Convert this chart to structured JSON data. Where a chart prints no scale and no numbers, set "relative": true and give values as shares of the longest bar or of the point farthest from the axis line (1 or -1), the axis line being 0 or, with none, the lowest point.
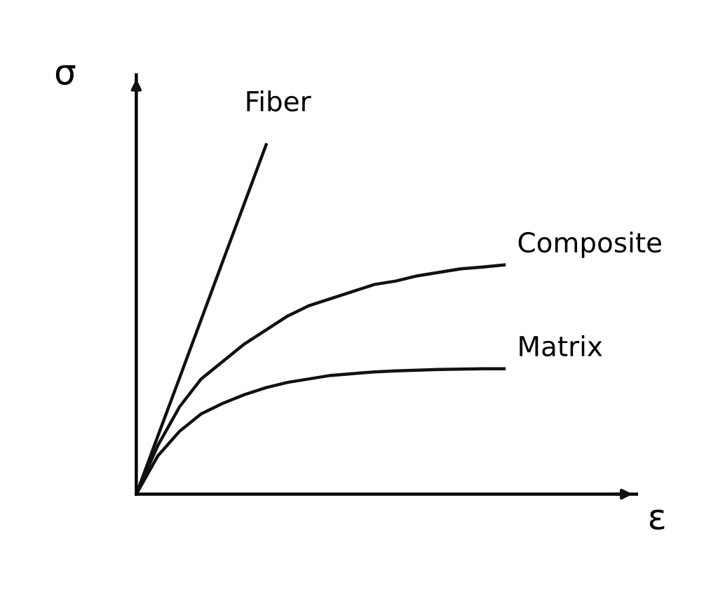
{
  "chart_data": {
    "type": "line",
    "relative": true,
    "xlabel": "ε",
    "ylabel": "σ",
    "marker": "none",
    "line_style": "solid",
    "categories": [
      null,
      null,
      null,
      null,
      null,
      null,
      null,
      null,
      null,
      null,
      null,
      null,
      null,
      null,
      null,
      null,
      null,
      null
    ],
    "series": [
      {
        "name": "Fiber",
        "color": "#111111",
        "values": [
          0,
          0.167,
          0.333,
          0.5,
          0.667,
          0.833,
          1,
          null,
          null,
          null,
          null,
          null,
          null,
          null,
          null,
          null,
          null,
          null
        ]
      },
      {
        "name": "Composite",
        "color": "#111111",
        "values": [
          0,
          0.14,
          0.25,
          0.33,
          0.38,
          0.43,
          0.47,
          0.51,
          0.54,
          0.56,
          0.58,
          0.6,
          0.61,
          0.625,
          0.635,
          0.645,
          0.65,
          0.656
        ]
      },
      {
        "name": "Matrix",
        "color": "#111111",
        "values": [
          0,
          0.11,
          0.18,
          0.23,
          0.26,
          0.285,
          0.305,
          0.32,
          0.33,
          0.34,
          0.345,
          0.35,
          0.353,
          0.355,
          0.357,
          0.358,
          0.359,
          0.359
        ]
      }
    ]
  }
}
